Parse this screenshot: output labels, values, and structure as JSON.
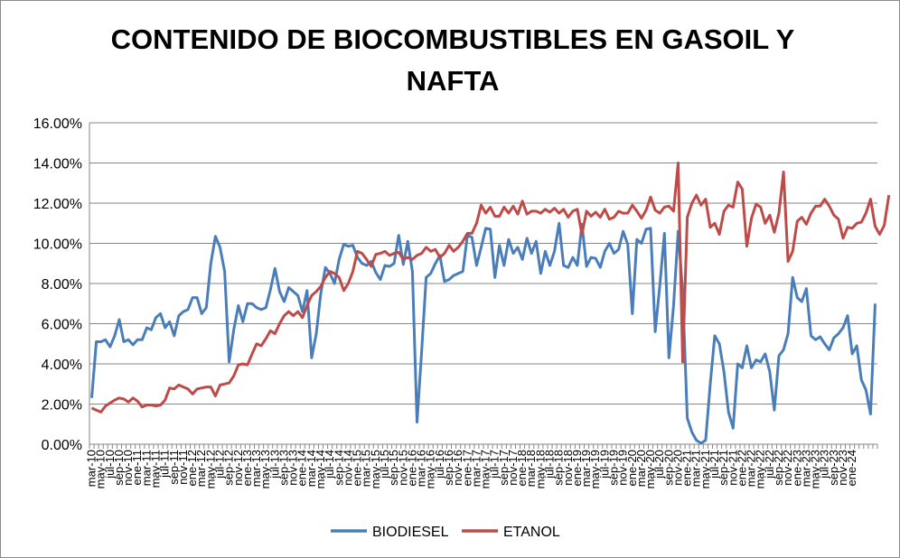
{
  "chart_data": {
    "type": "line",
    "title_line1": "CONTENIDO DE BIOCOMBUSTIBLES EN GASOIL Y",
    "title_line2": "NAFTA",
    "xlabel": "",
    "ylabel": "",
    "ylim": [
      0,
      16
    ],
    "y_ticks": [
      0,
      2,
      4,
      6,
      8,
      10,
      12,
      14,
      16
    ],
    "y_tick_labels": [
      "0.00%",
      "2.00%",
      "4.00%",
      "6.00%",
      "8.00%",
      "10.00%",
      "12.00%",
      "14.00%",
      "16.00%"
    ],
    "grid": "horizontal",
    "legend_position": "bottom",
    "x_tick_labels": [
      "mar-10",
      "may-10",
      "jul-10",
      "sep-10",
      "nov-10",
      "ene-11",
      "mar-11",
      "may-11",
      "jul-11",
      "sep-11",
      "nov-11",
      "ene-12",
      "mar-12",
      "may-12",
      "jul-12",
      "sep-12",
      "nov-12",
      "ene-13",
      "mar-13",
      "may-13",
      "jul-13",
      "sep-13",
      "nov-13",
      "ene-14",
      "mar-14",
      "may-14",
      "jul-14",
      "sep-14",
      "nov-14",
      "ene-15",
      "mar-15",
      "may-15",
      "jul-15",
      "sep-15",
      "nov-15",
      "ene-16",
      "mar-16",
      "may-16",
      "jul-16",
      "sep-16",
      "nov-16",
      "ene-17",
      "mar-17",
      "may-17",
      "jul-17",
      "sep-17",
      "nov-17",
      "ene-18",
      "mar-18",
      "may-18",
      "jul-18",
      "sep-18",
      "nov-18",
      "ene-19",
      "mar-19",
      "may-19",
      "jul-19",
      "sep-19",
      "nov-19",
      "ene-20",
      "mar-20",
      "may-20",
      "jul-20",
      "sep-20",
      "nov-20",
      "ene-21",
      "mar-21",
      "may-21",
      "jul-21",
      "sep-21",
      "nov-21",
      "ene-22",
      "mar-22",
      "may-22",
      "jul-22",
      "sep-22",
      "nov-22",
      "ene-23",
      "mar-23",
      "may-23",
      "jul-23",
      "sep-23",
      "nov-23",
      "ene-24"
    ],
    "series": [
      {
        "name": "BIODIESEL",
        "color": "#4a7ebb",
        "values": [
          2.3,
          5.1,
          5.1,
          5.2,
          4.85,
          5.4,
          6.2,
          5.1,
          5.2,
          4.95,
          5.2,
          5.2,
          5.8,
          5.7,
          6.3,
          6.5,
          5.8,
          6.1,
          5.4,
          6.4,
          6.6,
          6.7,
          7.3,
          7.3,
          6.5,
          6.8,
          9.0,
          10.35,
          9.8,
          8.6,
          4.1,
          5.7,
          6.9,
          6.1,
          7.0,
          7.0,
          6.8,
          6.7,
          6.8,
          7.7,
          8.75,
          7.6,
          7.1,
          7.8,
          7.6,
          7.4,
          6.6,
          7.65,
          4.3,
          5.5,
          7.5,
          8.8,
          8.5,
          8.0,
          9.2,
          9.95,
          9.85,
          9.9,
          9.3,
          9.0,
          8.9,
          9.1,
          8.55,
          8.2,
          8.9,
          8.85,
          9.0,
          10.4,
          8.95,
          10.1,
          8.6,
          1.1,
          4.6,
          8.3,
          8.5,
          9.0,
          9.4,
          8.1,
          8.2,
          8.4,
          8.5,
          8.6,
          10.4,
          10.3,
          8.9,
          9.8,
          10.75,
          10.7,
          8.3,
          9.9,
          8.9,
          10.2,
          9.5,
          9.8,
          9.2,
          10.25,
          9.5,
          10.1,
          8.5,
          9.6,
          8.9,
          9.6,
          11.0,
          8.9,
          8.8,
          9.3,
          8.9,
          10.95,
          8.85,
          9.3,
          9.25,
          8.8,
          9.6,
          10.0,
          9.5,
          9.7,
          10.6,
          9.95,
          6.5,
          10.2,
          10.0,
          10.7,
          10.75,
          5.6,
          7.9,
          10.5,
          4.3,
          6.9,
          10.6,
          7.6,
          1.3,
          0.6,
          0.2,
          0.05,
          0.2,
          3.0,
          5.4,
          5.0,
          3.6,
          1.6,
          0.8,
          4.0,
          3.8,
          4.9,
          3.8,
          4.2,
          4.1,
          4.5,
          3.6,
          1.7,
          4.4,
          4.7,
          5.5,
          8.3,
          7.3,
          7.1,
          7.75,
          5.4,
          5.2,
          5.35,
          5.0,
          4.7,
          5.3,
          5.5,
          5.8,
          6.4,
          4.5,
          4.9,
          3.2,
          2.7,
          1.5,
          7.0
        ]
      },
      {
        "name": "ETANOL",
        "color": "#be4b48",
        "values": [
          1.8,
          1.7,
          1.6,
          1.9,
          2.05,
          2.2,
          2.3,
          2.25,
          2.1,
          2.3,
          2.15,
          1.85,
          1.95,
          1.95,
          1.9,
          1.95,
          2.2,
          2.8,
          2.75,
          2.95,
          2.85,
          2.75,
          2.5,
          2.75,
          2.8,
          2.85,
          2.85,
          2.4,
          2.95,
          3.0,
          3.05,
          3.4,
          3.95,
          4.0,
          3.95,
          4.5,
          5.0,
          4.9,
          5.25,
          5.65,
          5.5,
          6.0,
          6.4,
          6.6,
          6.4,
          6.6,
          6.3,
          6.9,
          7.4,
          7.6,
          7.85,
          8.3,
          8.6,
          8.5,
          8.3,
          7.65,
          8.0,
          8.6,
          9.6,
          9.5,
          9.2,
          8.85,
          9.45,
          9.5,
          9.6,
          9.4,
          9.5,
          9.55,
          9.2,
          9.3,
          9.2,
          9.4,
          9.5,
          9.8,
          9.6,
          9.7,
          9.3,
          9.5,
          9.9,
          9.6,
          9.8,
          10.1,
          10.5,
          10.5,
          11.0,
          11.9,
          11.5,
          11.8,
          11.35,
          11.35,
          11.8,
          11.5,
          11.85,
          11.45,
          12.1,
          11.45,
          11.6,
          11.6,
          11.5,
          11.7,
          11.55,
          11.75,
          11.5,
          11.7,
          11.3,
          11.6,
          11.7,
          10.45,
          11.6,
          11.35,
          11.55,
          11.3,
          11.7,
          11.2,
          11.3,
          11.6,
          11.5,
          11.5,
          11.9,
          11.6,
          11.25,
          11.65,
          12.3,
          11.65,
          11.5,
          11.8,
          11.85,
          11.6,
          14.0,
          4.1,
          11.3,
          12.0,
          12.4,
          11.9,
          12.2,
          10.8,
          11.0,
          10.45,
          11.6,
          11.9,
          11.8,
          13.05,
          12.7,
          9.85,
          11.25,
          11.95,
          11.8,
          11.0,
          11.4,
          10.55,
          11.5,
          13.55,
          9.1,
          9.6,
          11.1,
          11.3,
          10.95,
          11.5,
          11.85,
          11.85,
          12.2,
          11.85,
          11.4,
          11.2,
          10.25,
          10.8,
          10.75,
          11.0,
          11.05,
          11.5,
          12.2,
          10.85,
          10.45,
          10.9,
          12.4
        ]
      }
    ]
  }
}
